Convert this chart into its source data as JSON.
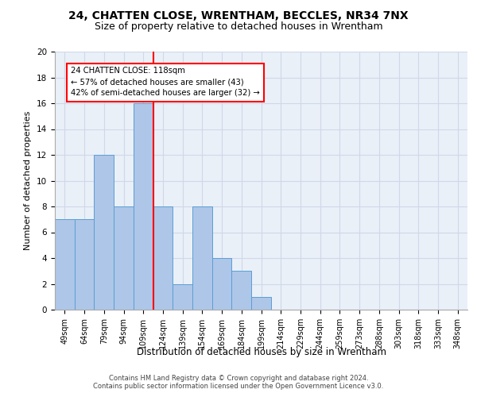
{
  "title1": "24, CHATTEN CLOSE, WRENTHAM, BECCLES, NR34 7NX",
  "title2": "Size of property relative to detached houses in Wrentham",
  "xlabel": "Distribution of detached houses by size in Wrentham",
  "ylabel": "Number of detached properties",
  "footer1": "Contains HM Land Registry data © Crown copyright and database right 2024.",
  "footer2": "Contains public sector information licensed under the Open Government Licence v3.0.",
  "bar_labels": [
    "49sqm",
    "64sqm",
    "79sqm",
    "94sqm",
    "109sqm",
    "124sqm",
    "139sqm",
    "154sqm",
    "169sqm",
    "184sqm",
    "199sqm",
    "214sqm",
    "229sqm",
    "244sqm",
    "259sqm",
    "273sqm",
    "288sqm",
    "303sqm",
    "318sqm",
    "333sqm",
    "348sqm"
  ],
  "bar_values": [
    7,
    7,
    12,
    8,
    16,
    8,
    2,
    8,
    4,
    3,
    1,
    0,
    0,
    0,
    0,
    0,
    0,
    0,
    0,
    0,
    0
  ],
  "bar_color": "#aec6e8",
  "bar_edge_color": "#5a9fd4",
  "property_line_x": 4.5,
  "property_line_label": "24 CHATTEN CLOSE: 118sqm",
  "annotation_line1": "← 57% of detached houses are smaller (43)",
  "annotation_line2": "42% of semi-detached houses are larger (32) →",
  "annotation_box_color": "red",
  "ylim": [
    0,
    20
  ],
  "yticks": [
    0,
    2,
    4,
    6,
    8,
    10,
    12,
    14,
    16,
    18,
    20
  ],
  "grid_color": "#d0d8e8",
  "bg_color": "#eaf0f8",
  "title1_fontsize": 10,
  "title2_fontsize": 9,
  "xlabel_fontsize": 8.5,
  "ylabel_fontsize": 8
}
